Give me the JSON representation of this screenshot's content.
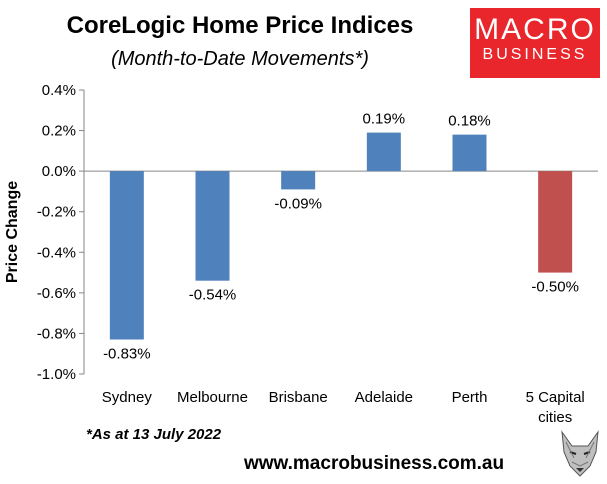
{
  "header": {
    "title": "CoreLogic Home Price Indices",
    "subtitle": "(Month-to-Date Movements*)"
  },
  "logo": {
    "line1": "MACRO",
    "line2": "BUSINESS",
    "color": "#e8262b"
  },
  "footnote": "*As at 13 July 2022",
  "website": "www.macrobusiness.com.au",
  "colors": {
    "bar": "#4f81bd",
    "highlight": "#c0504d"
  },
  "chart_data": {
    "type": "bar",
    "ylabel": "Price Change",
    "ylim": [
      -1.0,
      0.4
    ],
    "yticks": [
      0.4,
      0.2,
      0.0,
      -0.2,
      -0.4,
      -0.6,
      -0.8,
      -1.0
    ],
    "ytick_labels": [
      "0.4%",
      "0.2%",
      "0.0%",
      "-0.2%",
      "-0.4%",
      "-0.6%",
      "-0.8%",
      "-1.0%"
    ],
    "categories": [
      "Sydney",
      "Melbourne",
      "Brisbane",
      "Adelaide",
      "Perth",
      "5 Capital cities"
    ],
    "values": [
      -0.83,
      -0.54,
      -0.09,
      0.19,
      0.18,
      -0.5
    ],
    "value_labels": [
      "-0.83%",
      "-0.54%",
      "-0.09%",
      "0.19%",
      "0.18%",
      "-0.50%"
    ],
    "highlight_index": 5,
    "grid": false,
    "legend": "none"
  }
}
